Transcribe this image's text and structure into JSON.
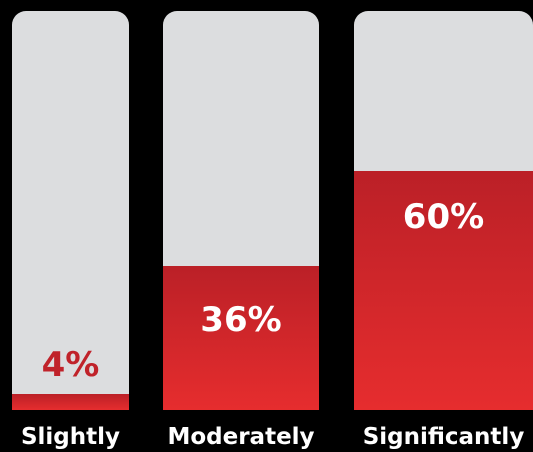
{
  "chart_data": {
    "type": "bar",
    "categories": [
      "Slightly",
      "Moderately",
      "Significantly"
    ],
    "values": [
      4,
      36,
      60
    ],
    "value_labels": [
      "4%",
      "36%",
      "60%"
    ],
    "ylim": [
      0,
      100
    ],
    "title": "",
    "xlabel": "",
    "ylabel": "",
    "grid": false,
    "legend": "none"
  },
  "colors": {
    "background": "#000000",
    "track": "#dcdddf",
    "fill_top": "#bb2027",
    "fill_bottom": "#e62d2e",
    "label_on_track": "#c0222a",
    "label_on_fill": "#ffffff",
    "category_text": "#ffffff"
  }
}
